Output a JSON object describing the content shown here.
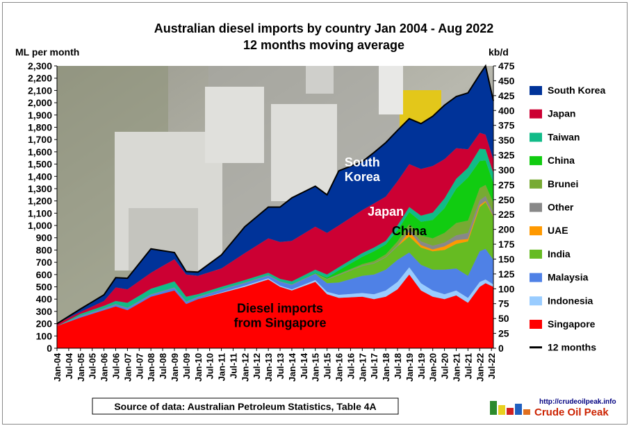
{
  "chart_data": {
    "type": "area",
    "title": "Australian diesel imports by country Jan 2004 - Aug 2022",
    "subtitle": "12 months moving average",
    "ylabel": "ML per month",
    "y2label": "kb/d",
    "ylim": [
      0,
      2300
    ],
    "y2lim": [
      0,
      475
    ],
    "yticks": [
      "0",
      "100",
      "200",
      "300",
      "400",
      "500",
      "600",
      "700",
      "800",
      "900",
      "1,000",
      "1,100",
      "1,200",
      "1,300",
      "1,400",
      "1,500",
      "1,600",
      "1,700",
      "1,800",
      "1,900",
      "2,000",
      "2,100",
      "2,200",
      "2,300"
    ],
    "y2ticks": [
      "0",
      "25",
      "50",
      "75",
      "100",
      "125",
      "150",
      "175",
      "200",
      "225",
      "250",
      "275",
      "300",
      "325",
      "350",
      "375",
      "400",
      "425",
      "450",
      "475"
    ],
    "xticks": [
      "Jan-04",
      "Jul-04",
      "Jan-05",
      "Jul-05",
      "Jan-06",
      "Jul-06",
      "Jan-07",
      "Jul-07",
      "Jan-08",
      "Jul-08",
      "Jan-09",
      "Jul-09",
      "Jan-10",
      "Jul-10",
      "Jan-11",
      "Jul-11",
      "Jan-12",
      "Jul-12",
      "Jan-13",
      "Jul-13",
      "Jan-14",
      "Jul-14",
      "Jan-15",
      "Jul-15",
      "Jan-16",
      "Jul-16",
      "Jan-17",
      "Jul-17",
      "Jan-18",
      "Jul-18",
      "Jan-19",
      "Jul-19",
      "Jan-20",
      "Jul-20",
      "Jan-21",
      "Jul-21",
      "Jan-22",
      "Jul-22"
    ],
    "grid": false,
    "legend_position": "right",
    "stack_order": [
      "Singapore",
      "Indonesia",
      "Malaysia",
      "India",
      "UAE",
      "Other",
      "Brunei",
      "China",
      "Taiwan",
      "Japan",
      "South Korea"
    ],
    "dates": [
      "Jan-04",
      "Jan-05",
      "Jan-06",
      "Jul-06",
      "Jan-07",
      "Jan-08",
      "Jan-09",
      "Jul-09",
      "Jan-10",
      "Jan-11",
      "Jan-12",
      "Jan-13",
      "Jul-13",
      "Jan-14",
      "Jan-15",
      "Jul-15",
      "Jan-16",
      "Jan-17",
      "Jul-17",
      "Jan-18",
      "Jul-18",
      "Jan-19",
      "Jul-19",
      "Jan-20",
      "Jul-20",
      "Jan-21",
      "Jul-21",
      "Jan-22",
      "Apr-22",
      "Aug-22"
    ],
    "series": [
      {
        "name": "Singapore",
        "color": "#ff0000",
        "values": [
          180,
          250,
          310,
          340,
          310,
          420,
          470,
          360,
          400,
          450,
          500,
          560,
          500,
          470,
          540,
          440,
          410,
          420,
          400,
          420,
          480,
          600,
          470,
          420,
          400,
          430,
          370,
          500,
          530,
          500
        ]
      },
      {
        "name": "Indonesia",
        "color": "#99ccff",
        "values": [
          0,
          0,
          0,
          0,
          0,
          0,
          0,
          0,
          0,
          5,
          10,
          10,
          10,
          10,
          15,
          20,
          25,
          30,
          40,
          50,
          60,
          60,
          60,
          50,
          40,
          40,
          40,
          40,
          30,
          20
        ]
      },
      {
        "name": "Malaysia",
        "color": "#4f81e6",
        "values": [
          0,
          10,
          10,
          15,
          15,
          15,
          20,
          15,
          15,
          20,
          20,
          20,
          30,
          35,
          50,
          70,
          100,
          140,
          160,
          170,
          180,
          120,
          150,
          170,
          200,
          180,
          180,
          250,
          250,
          200
        ]
      },
      {
        "name": "India",
        "color": "#66bb22",
        "values": [
          0,
          0,
          0,
          0,
          0,
          0,
          0,
          0,
          0,
          0,
          0,
          0,
          0,
          0,
          0,
          30,
          60,
          80,
          90,
          100,
          110,
          130,
          140,
          150,
          160,
          200,
          280,
          360,
          380,
          350
        ]
      },
      {
        "name": "UAE",
        "color": "#ff9900",
        "values": [
          0,
          0,
          0,
          0,
          0,
          0,
          0,
          0,
          0,
          0,
          0,
          0,
          0,
          0,
          0,
          0,
          0,
          0,
          0,
          0,
          0,
          40,
          20,
          15,
          30,
          30,
          20,
          15,
          10,
          5
        ]
      },
      {
        "name": "Other",
        "color": "#888888",
        "values": [
          0,
          5,
          5,
          5,
          5,
          5,
          5,
          5,
          5,
          5,
          5,
          5,
          5,
          5,
          5,
          5,
          5,
          5,
          5,
          5,
          10,
          20,
          30,
          30,
          30,
          40,
          50,
          40,
          40,
          30
        ]
      },
      {
        "name": "Brunei",
        "color": "#77aa33",
        "values": [
          0,
          0,
          0,
          0,
          0,
          0,
          0,
          0,
          0,
          0,
          0,
          0,
          0,
          0,
          0,
          0,
          5,
          10,
          15,
          20,
          30,
          40,
          50,
          60,
          80,
          100,
          100,
          100,
          90,
          80
        ]
      },
      {
        "name": "China",
        "color": "#11cc11",
        "values": [
          0,
          0,
          0,
          0,
          0,
          0,
          0,
          0,
          0,
          0,
          0,
          0,
          0,
          0,
          5,
          10,
          30,
          60,
          80,
          80,
          90,
          100,
          110,
          150,
          200,
          280,
          350,
          220,
          200,
          160
        ]
      },
      {
        "name": "Taiwan",
        "color": "#11bb88",
        "values": [
          0,
          15,
          20,
          25,
          40,
          45,
          50,
          40,
          20,
          20,
          20,
          20,
          20,
          25,
          25,
          25,
          25,
          30,
          30,
          30,
          40,
          40,
          50,
          60,
          80,
          80,
          80,
          100,
          90,
          80
        ]
      },
      {
        "name": "Japan",
        "color": "#cc0033",
        "values": [
          20,
          15,
          40,
          110,
          110,
          130,
          180,
          180,
          150,
          150,
          220,
          280,
          300,
          330,
          350,
          340,
          340,
          350,
          360,
          360,
          360,
          350,
          380,
          380,
          320,
          250,
          150,
          130,
          120,
          110
        ]
      },
      {
        "name": "South Korea",
        "color": "#003399",
        "values": [
          0,
          25,
          50,
          80,
          90,
          195,
          55,
          25,
          30,
          110,
          215,
          255,
          285,
          350,
          330,
          310,
          445,
          395,
          415,
          440,
          415,
          370,
          370,
          405,
          440,
          420,
          460,
          475,
          560,
          480
        ]
      }
    ],
    "total_line": {
      "name": "12 months",
      "color": "#000000"
    },
    "annotations": [
      {
        "lines": [
          "South",
          "Korea"
        ],
        "color": "#ffffff",
        "date": "Jan-17",
        "y": 1480
      },
      {
        "lines": [
          "Japan"
        ],
        "color": "#ffffff",
        "date": "Jan-18",
        "y": 1080
      },
      {
        "lines": [
          "China"
        ],
        "color": "#000000",
        "date": "Jan-19",
        "y": 920
      },
      {
        "lines": [
          "Diesel imports",
          "from Singapore"
        ],
        "color": "#000000",
        "date": "Jul-13",
        "y": 290
      }
    ],
    "source": "Source of data: Australian Petroleum Statistics, Table 4A"
  },
  "legend": [
    {
      "label": "South Korea",
      "color": "#003399",
      "type": "box"
    },
    {
      "label": "Japan",
      "color": "#cc0033",
      "type": "box"
    },
    {
      "label": "Taiwan",
      "color": "#11bb88",
      "type": "box"
    },
    {
      "label": "China",
      "color": "#11cc11",
      "type": "box"
    },
    {
      "label": "Brunei",
      "color": "#77aa33",
      "type": "box"
    },
    {
      "label": "Other",
      "color": "#888888",
      "type": "box"
    },
    {
      "label": "UAE",
      "color": "#ff9900",
      "type": "box"
    },
    {
      "label": "India",
      "color": "#66bb22",
      "type": "box"
    },
    {
      "label": "Malaysia",
      "color": "#4f81e6",
      "type": "box"
    },
    {
      "label": "Indonesia",
      "color": "#99ccff",
      "type": "box"
    },
    {
      "label": "Singapore",
      "color": "#ff0000",
      "type": "box"
    },
    {
      "label": "12 months",
      "color": "#000000",
      "type": "line"
    }
  ],
  "logo": {
    "url_text": "http://crudeoilpeak.info",
    "name": "Crude Oil Peak"
  }
}
